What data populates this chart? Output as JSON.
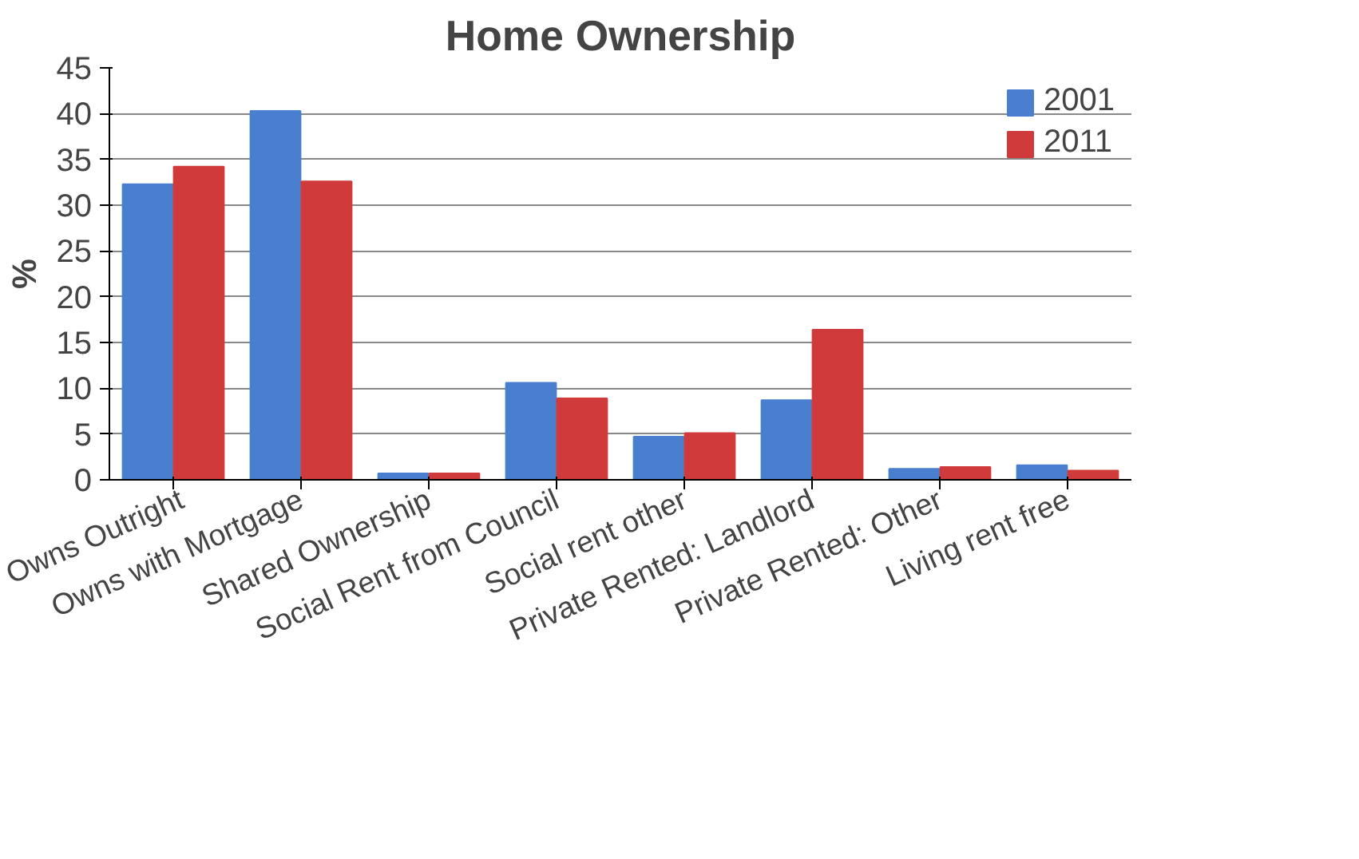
{
  "chart_data": {
    "type": "bar",
    "title": "Home Ownership",
    "ylabel": "%",
    "categories": [
      "Owns Outright",
      "Owns with Mortgage",
      "Shared Ownership",
      "Social Rent from Council",
      "Social rent other",
      "Private Rented: Landlord",
      "Private Rented: Other",
      "Living rent free"
    ],
    "series": [
      {
        "name": "2001",
        "color": "#4a7fd0",
        "values": [
          32.3,
          40.3,
          0.7,
          10.6,
          4.7,
          8.7,
          1.2,
          1.6
        ]
      },
      {
        "name": "2011",
        "color": "#d03a3a",
        "values": [
          34.2,
          32.6,
          0.7,
          8.9,
          5.1,
          16.4,
          1.4,
          1.0
        ]
      }
    ],
    "ylim": [
      0,
      45
    ],
    "yticks": [
      0,
      5,
      10,
      15,
      20,
      25,
      30,
      35,
      40,
      45
    ],
    "grid": "y",
    "legend": "top right"
  }
}
